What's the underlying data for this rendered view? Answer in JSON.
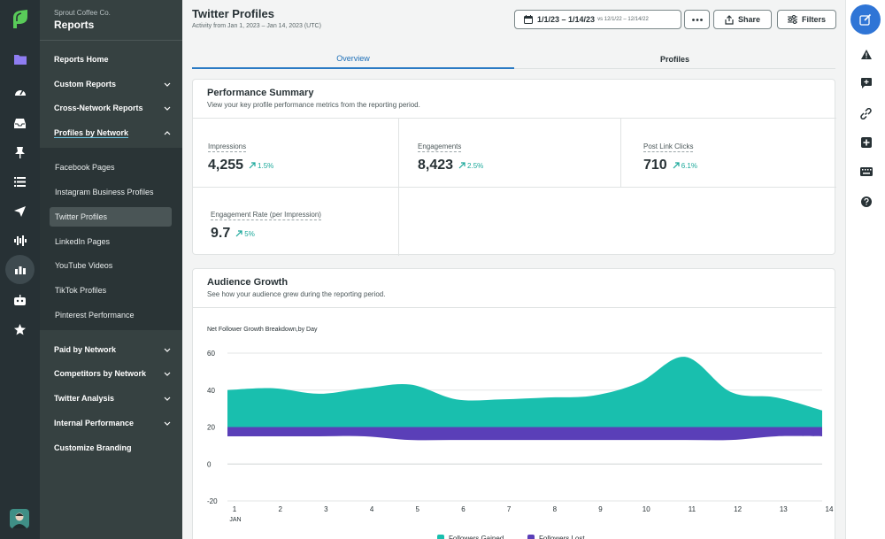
{
  "app": {
    "brand": "Sprout Coffee Co.",
    "section_title": "Reports",
    "accent_color": "#2f75d6",
    "chart_gained_color": "#19bfae",
    "chart_lost_color": "#5a3fb8"
  },
  "rail_icons": [
    "sprout-logo",
    "folder-icon",
    "gauge-icon",
    "inbox-icon",
    "pin-icon",
    "list-icon",
    "send-icon",
    "audio-wave-icon",
    "bar-chart-icon",
    "bot-icon",
    "star-icon"
  ],
  "nav": {
    "items_top": [
      {
        "label": "Reports Home",
        "chevron": false
      },
      {
        "label": "Custom Reports",
        "chevron": "down"
      },
      {
        "label": "Cross-Network Reports",
        "chevron": "down"
      },
      {
        "label": "Profiles by Network",
        "chevron": "up"
      }
    ],
    "sub_items": [
      {
        "label": "Facebook Pages",
        "active": false
      },
      {
        "label": "Instagram Business Profiles",
        "active": false
      },
      {
        "label": "Twitter Profiles",
        "active": true
      },
      {
        "label": "LinkedIn Pages",
        "active": false
      },
      {
        "label": "YouTube Videos",
        "active": false
      },
      {
        "label": "TikTok Profiles",
        "active": false
      },
      {
        "label": "Pinterest Performance",
        "active": false
      }
    ],
    "items_bottom": [
      {
        "label": "Paid by Network",
        "chevron": "down"
      },
      {
        "label": "Competitors by Network",
        "chevron": "down"
      },
      {
        "label": "Twitter Analysis",
        "chevron": "down"
      },
      {
        "label": "Internal Performance",
        "chevron": "down"
      },
      {
        "label": "Customize Branding",
        "chevron": false
      }
    ]
  },
  "header": {
    "title": "Twitter Profiles",
    "subtitle": "Activity from Jan 1, 2023 – Jan 14, 2023 (UTC)",
    "date_range": "1/1/23 – 1/14/23",
    "compare_range": "vs 12/1/22 – 12/14/22",
    "share_label": "Share",
    "filters_label": "Filters"
  },
  "tabs": [
    {
      "label": "Overview",
      "active": true
    },
    {
      "label": "Profiles",
      "active": false
    }
  ],
  "summary": {
    "title": "Performance Summary",
    "subtitle": "View your key profile performance metrics from the reporting period.",
    "metrics": [
      {
        "label": "Impressions",
        "value": "4,255",
        "change": "1.5%"
      },
      {
        "label": "Engagements",
        "value": "8,423",
        "change": "2.5%"
      },
      {
        "label": "Post Link Clicks",
        "value": "710",
        "change": "6.1%"
      },
      {
        "label": "Engagement Rate (per Impression)",
        "value": "9.7",
        "change": "5%"
      }
    ]
  },
  "growth": {
    "title": "Audience Growth",
    "subtitle": "See how your audience grew during the reporting period."
  },
  "chart_data": {
    "type": "area",
    "title": "Net Follower Growth Breakdown,by Day",
    "x": [
      1,
      2,
      3,
      4,
      5,
      6,
      7,
      8,
      9,
      10,
      11,
      12,
      13,
      14
    ],
    "x_month_label": "JAN",
    "ylim": [
      -20,
      60
    ],
    "yticks": [
      60,
      40,
      20,
      0,
      -20
    ],
    "grid": true,
    "series": [
      {
        "name": "Followers Gained",
        "color": "#19bfae",
        "values": [
          20,
          21,
          18,
          21,
          23,
          15,
          15,
          16,
          17,
          24,
          38,
          19,
          16,
          9
        ]
      },
      {
        "name": "Followers Lost",
        "color": "#5a3fb8",
        "values": [
          5,
          5,
          5,
          5,
          7,
          7,
          7,
          7,
          7,
          7,
          7,
          7,
          5,
          5
        ]
      }
    ],
    "legend_position": "bottom"
  }
}
